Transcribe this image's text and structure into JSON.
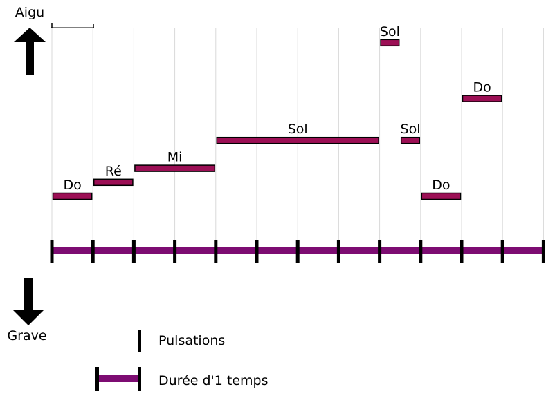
{
  "axis": {
    "high_label": "Aigu",
    "low_label": "Grave",
    "beat_count": 12
  },
  "notes": [
    {
      "name": "Do",
      "start": 0,
      "end": 1,
      "pitch": 0
    },
    {
      "name": "Ré",
      "start": 1,
      "end": 2,
      "pitch": 1
    },
    {
      "name": "Mi",
      "start": 2,
      "end": 4,
      "pitch": 2
    },
    {
      "name": "Sol",
      "start": 4,
      "end": 8,
      "pitch": 4
    },
    {
      "name": "Sol",
      "start": 8,
      "end": 8.5,
      "pitch": 11
    },
    {
      "name": "Sol",
      "start": 8.5,
      "end": 9,
      "pitch": 4
    },
    {
      "name": "Do",
      "start": 9,
      "end": 10,
      "pitch": 0
    },
    {
      "name": "Do",
      "start": 10,
      "end": 11,
      "pitch": 7
    }
  ],
  "legend": {
    "pulse_label": "Pulsations",
    "duration_label": "Durée d'1 temps"
  },
  "colors": {
    "note_fill": "#9c0f55",
    "beat_bar": "#7d0c72",
    "grid": "#d9d9d9",
    "ink": "#000000"
  }
}
